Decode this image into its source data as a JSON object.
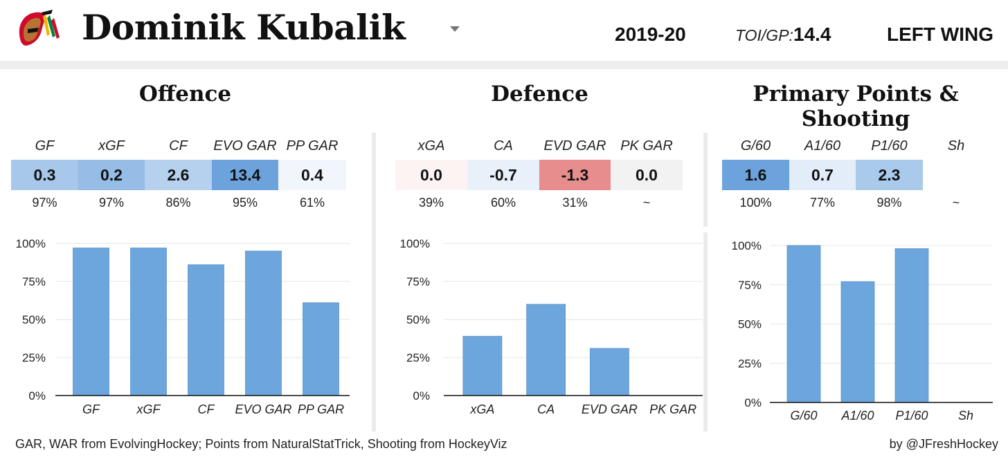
{
  "header": {
    "player_name": "Dominik Kubalik",
    "season": "2019-20",
    "toi_label": "TOI/GP:",
    "toi_value": "14.4",
    "position": "LEFT WING"
  },
  "sections": {
    "offence": "Offence",
    "defence": "Defence",
    "points": "Primary Points & Shooting"
  },
  "tables": {
    "offence": [
      {
        "label": "GF",
        "value": "0.3",
        "pct": "97%",
        "color": "#a7c8ea"
      },
      {
        "label": "xGF",
        "value": "0.2",
        "pct": "97%",
        "color": "#95bde6"
      },
      {
        "label": "CF",
        "value": "2.6",
        "pct": "86%",
        "color": "#b5d1ee"
      },
      {
        "label": "EVO GAR",
        "value": "13.4",
        "pct": "95%",
        "color": "#6ca3dc"
      },
      {
        "label": "PP GAR",
        "value": "0.4",
        "pct": "61%",
        "color": "#f1f6fc"
      }
    ],
    "defence": [
      {
        "label": "xGA",
        "value": "0.0",
        "pct": "39%",
        "color": "#fdf3f3"
      },
      {
        "label": "CA",
        "value": "-0.7",
        "pct": "60%",
        "color": "#e8f0fa"
      },
      {
        "label": "EVD GAR",
        "value": "-1.3",
        "pct": "31%",
        "color": "#e88d8d"
      },
      {
        "label": "PK GAR",
        "value": "0.0",
        "pct": "~",
        "color": "#f2f2f2"
      }
    ],
    "points": [
      {
        "label": "G/60",
        "value": "1.6",
        "pct": "100%",
        "color": "#6ca3dc"
      },
      {
        "label": "A1/60",
        "value": "0.7",
        "pct": "77%",
        "color": "#e3edf9"
      },
      {
        "label": "P1/60",
        "value": "2.3",
        "pct": "98%",
        "color": "#a9caeb"
      },
      {
        "label": "Sh",
        "value": "",
        "pct": "~",
        "color": "#ffffff"
      }
    ]
  },
  "chart_data": [
    {
      "type": "bar",
      "categories": [
        "GF",
        "xGF",
        "CF",
        "EVO GAR",
        "PP GAR"
      ],
      "values": [
        97,
        97,
        86,
        95,
        61
      ],
      "yticks": [
        "0%",
        "25%",
        "50%",
        "75%",
        "100%"
      ],
      "ylim": [
        0,
        100
      ],
      "bar_color": "#6ca6dd"
    },
    {
      "type": "bar",
      "categories": [
        "xGA",
        "CA",
        "EVD GAR",
        "PK GAR"
      ],
      "values": [
        39,
        60,
        31,
        0
      ],
      "yticks": [
        "0%",
        "25%",
        "50%",
        "75%",
        "100%"
      ],
      "ylim": [
        0,
        100
      ],
      "bar_color": "#6ca6dd"
    },
    {
      "type": "bar",
      "categories": [
        "G/60",
        "A1/60",
        "P1/60",
        "Sh"
      ],
      "values": [
        100,
        77,
        98,
        0
      ],
      "yticks": [
        "0%",
        "25%",
        "50%",
        "75%",
        "100%"
      ],
      "ylim": [
        0,
        100
      ],
      "bar_color": "#6ca6dd"
    }
  ],
  "footer": {
    "sources": "GAR, WAR from EvolvingHockey; Points from NaturalStatTrick, Shooting from HockeyViz",
    "credit": "by @JFreshHockey"
  }
}
